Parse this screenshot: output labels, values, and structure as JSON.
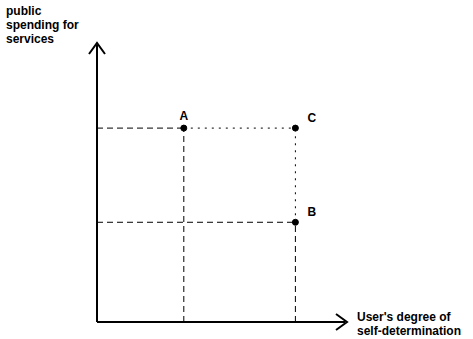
{
  "chart_data": {
    "type": "scatter",
    "x_label": "User's degree of self-determination",
    "y_label": "public spending for services",
    "labels": [
      "A",
      "B",
      "C"
    ],
    "x": [
      3.5,
      8,
      8
    ],
    "values": [
      7,
      3.6,
      7
    ],
    "xlim": [
      0,
      10
    ],
    "ylim": [
      0,
      10
    ],
    "tick_labels": false,
    "grid": false,
    "color": "#000000",
    "marker": "circle"
  }
}
